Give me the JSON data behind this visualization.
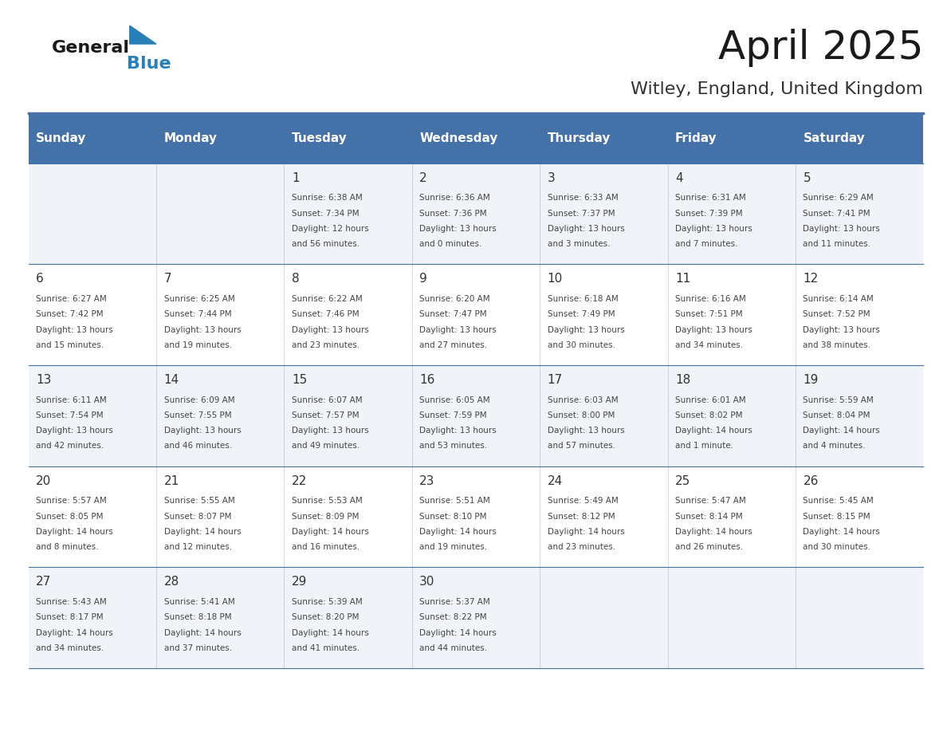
{
  "title": "April 2025",
  "subtitle": "Witley, England, United Kingdom",
  "days_of_week": [
    "Sunday",
    "Monday",
    "Tuesday",
    "Wednesday",
    "Thursday",
    "Friday",
    "Saturday"
  ],
  "header_bg": "#4472a8",
  "header_text": "#ffffff",
  "row_bg_even": "#f0f4f8",
  "row_bg_odd": "#ffffff",
  "day_number_color": "#333333",
  "text_color": "#444444",
  "line_color": "#4472a8",
  "logo_general_color": "#222222",
  "logo_blue_color": "#2980b9",
  "weeks": [
    {
      "days": [
        {
          "date": "",
          "sunrise": "",
          "sunset": "",
          "daylight": ""
        },
        {
          "date": "",
          "sunrise": "",
          "sunset": "",
          "daylight": ""
        },
        {
          "date": "1",
          "sunrise": "Sunrise: 6:38 AM",
          "sunset": "Sunset: 7:34 PM",
          "daylight": "Daylight: 12 hours\nand 56 minutes."
        },
        {
          "date": "2",
          "sunrise": "Sunrise: 6:36 AM",
          "sunset": "Sunset: 7:36 PM",
          "daylight": "Daylight: 13 hours\nand 0 minutes."
        },
        {
          "date": "3",
          "sunrise": "Sunrise: 6:33 AM",
          "sunset": "Sunset: 7:37 PM",
          "daylight": "Daylight: 13 hours\nand 3 minutes."
        },
        {
          "date": "4",
          "sunrise": "Sunrise: 6:31 AM",
          "sunset": "Sunset: 7:39 PM",
          "daylight": "Daylight: 13 hours\nand 7 minutes."
        },
        {
          "date": "5",
          "sunrise": "Sunrise: 6:29 AM",
          "sunset": "Sunset: 7:41 PM",
          "daylight": "Daylight: 13 hours\nand 11 minutes."
        }
      ]
    },
    {
      "days": [
        {
          "date": "6",
          "sunrise": "Sunrise: 6:27 AM",
          "sunset": "Sunset: 7:42 PM",
          "daylight": "Daylight: 13 hours\nand 15 minutes."
        },
        {
          "date": "7",
          "sunrise": "Sunrise: 6:25 AM",
          "sunset": "Sunset: 7:44 PM",
          "daylight": "Daylight: 13 hours\nand 19 minutes."
        },
        {
          "date": "8",
          "sunrise": "Sunrise: 6:22 AM",
          "sunset": "Sunset: 7:46 PM",
          "daylight": "Daylight: 13 hours\nand 23 minutes."
        },
        {
          "date": "9",
          "sunrise": "Sunrise: 6:20 AM",
          "sunset": "Sunset: 7:47 PM",
          "daylight": "Daylight: 13 hours\nand 27 minutes."
        },
        {
          "date": "10",
          "sunrise": "Sunrise: 6:18 AM",
          "sunset": "Sunset: 7:49 PM",
          "daylight": "Daylight: 13 hours\nand 30 minutes."
        },
        {
          "date": "11",
          "sunrise": "Sunrise: 6:16 AM",
          "sunset": "Sunset: 7:51 PM",
          "daylight": "Daylight: 13 hours\nand 34 minutes."
        },
        {
          "date": "12",
          "sunrise": "Sunrise: 6:14 AM",
          "sunset": "Sunset: 7:52 PM",
          "daylight": "Daylight: 13 hours\nand 38 minutes."
        }
      ]
    },
    {
      "days": [
        {
          "date": "13",
          "sunrise": "Sunrise: 6:11 AM",
          "sunset": "Sunset: 7:54 PM",
          "daylight": "Daylight: 13 hours\nand 42 minutes."
        },
        {
          "date": "14",
          "sunrise": "Sunrise: 6:09 AM",
          "sunset": "Sunset: 7:55 PM",
          "daylight": "Daylight: 13 hours\nand 46 minutes."
        },
        {
          "date": "15",
          "sunrise": "Sunrise: 6:07 AM",
          "sunset": "Sunset: 7:57 PM",
          "daylight": "Daylight: 13 hours\nand 49 minutes."
        },
        {
          "date": "16",
          "sunrise": "Sunrise: 6:05 AM",
          "sunset": "Sunset: 7:59 PM",
          "daylight": "Daylight: 13 hours\nand 53 minutes."
        },
        {
          "date": "17",
          "sunrise": "Sunrise: 6:03 AM",
          "sunset": "Sunset: 8:00 PM",
          "daylight": "Daylight: 13 hours\nand 57 minutes."
        },
        {
          "date": "18",
          "sunrise": "Sunrise: 6:01 AM",
          "sunset": "Sunset: 8:02 PM",
          "daylight": "Daylight: 14 hours\nand 1 minute."
        },
        {
          "date": "19",
          "sunrise": "Sunrise: 5:59 AM",
          "sunset": "Sunset: 8:04 PM",
          "daylight": "Daylight: 14 hours\nand 4 minutes."
        }
      ]
    },
    {
      "days": [
        {
          "date": "20",
          "sunrise": "Sunrise: 5:57 AM",
          "sunset": "Sunset: 8:05 PM",
          "daylight": "Daylight: 14 hours\nand 8 minutes."
        },
        {
          "date": "21",
          "sunrise": "Sunrise: 5:55 AM",
          "sunset": "Sunset: 8:07 PM",
          "daylight": "Daylight: 14 hours\nand 12 minutes."
        },
        {
          "date": "22",
          "sunrise": "Sunrise: 5:53 AM",
          "sunset": "Sunset: 8:09 PM",
          "daylight": "Daylight: 14 hours\nand 16 minutes."
        },
        {
          "date": "23",
          "sunrise": "Sunrise: 5:51 AM",
          "sunset": "Sunset: 8:10 PM",
          "daylight": "Daylight: 14 hours\nand 19 minutes."
        },
        {
          "date": "24",
          "sunrise": "Sunrise: 5:49 AM",
          "sunset": "Sunset: 8:12 PM",
          "daylight": "Daylight: 14 hours\nand 23 minutes."
        },
        {
          "date": "25",
          "sunrise": "Sunrise: 5:47 AM",
          "sunset": "Sunset: 8:14 PM",
          "daylight": "Daylight: 14 hours\nand 26 minutes."
        },
        {
          "date": "26",
          "sunrise": "Sunrise: 5:45 AM",
          "sunset": "Sunset: 8:15 PM",
          "daylight": "Daylight: 14 hours\nand 30 minutes."
        }
      ]
    },
    {
      "days": [
        {
          "date": "27",
          "sunrise": "Sunrise: 5:43 AM",
          "sunset": "Sunset: 8:17 PM",
          "daylight": "Daylight: 14 hours\nand 34 minutes."
        },
        {
          "date": "28",
          "sunrise": "Sunrise: 5:41 AM",
          "sunset": "Sunset: 8:18 PM",
          "daylight": "Daylight: 14 hours\nand 37 minutes."
        },
        {
          "date": "29",
          "sunrise": "Sunrise: 5:39 AM",
          "sunset": "Sunset: 8:20 PM",
          "daylight": "Daylight: 14 hours\nand 41 minutes."
        },
        {
          "date": "30",
          "sunrise": "Sunrise: 5:37 AM",
          "sunset": "Sunset: 8:22 PM",
          "daylight": "Daylight: 14 hours\nand 44 minutes."
        },
        {
          "date": "",
          "sunrise": "",
          "sunset": "",
          "daylight": ""
        },
        {
          "date": "",
          "sunrise": "",
          "sunset": "",
          "daylight": ""
        },
        {
          "date": "",
          "sunrise": "",
          "sunset": "",
          "daylight": ""
        }
      ]
    }
  ]
}
